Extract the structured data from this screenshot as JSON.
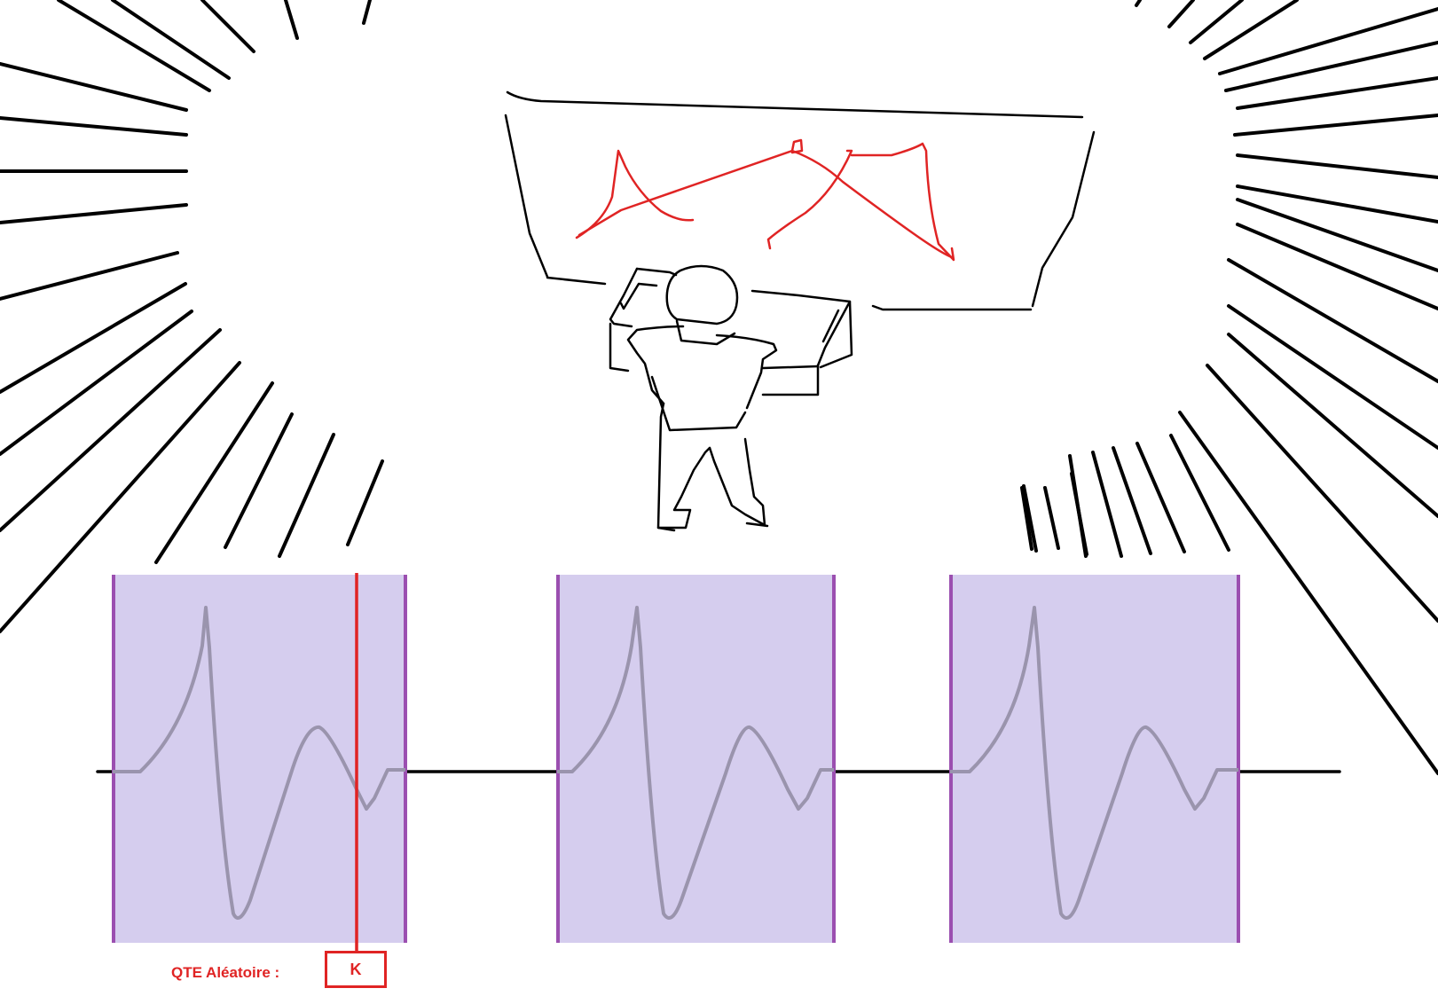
{
  "qte": {
    "label": "QTE Aléatoire :",
    "key": "K"
  },
  "colors": {
    "ink": "#000000",
    "sketch_red": "#e02424",
    "zone_fill": "#d5cdee",
    "zone_border": "#9b4fb0",
    "waveform": "#9a94ad",
    "cursor": "#e02424"
  },
  "scene": {
    "characters": [
      "player-at-console"
    ],
    "screen_drawing": "red-scribble"
  },
  "timeline": {
    "zone_count": 3
  }
}
